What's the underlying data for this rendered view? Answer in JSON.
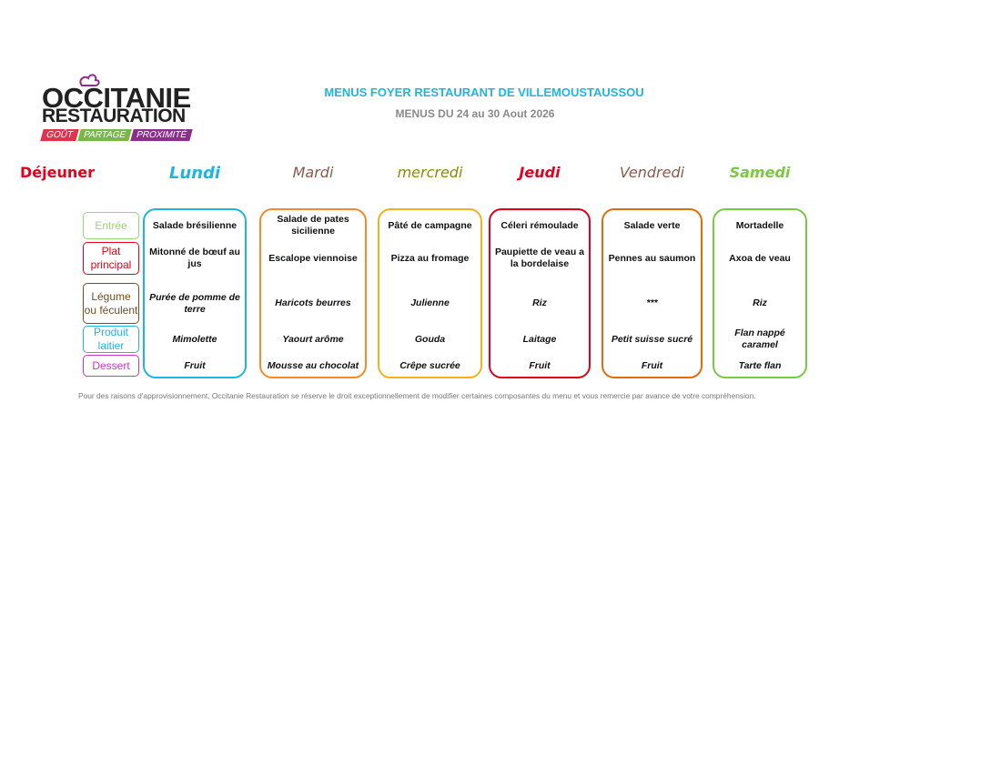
{
  "header": {
    "logo": {
      "line1": "OCCITANIE",
      "line2": "RESTAURATION",
      "tags": [
        "GOÛT",
        "PARTAGE",
        "PROXIMITÉ"
      ]
    },
    "title": "MENUS FOYER RESTAURANT DE VILLEMOUSTAUSSOU",
    "subtitle": "MENUS DU 24 au 30 Aout 2026"
  },
  "menu": {
    "meal_label": "Déjeuner",
    "categories": [
      "Entrée",
      "Plat principal",
      "Légume ou féculent",
      "Produit laitier",
      "Dessert"
    ],
    "days": [
      {
        "name": "Lundi",
        "items": [
          "Salade brésilienne",
          "Mitonné de bœuf au jus",
          "Purée de pomme de terre",
          "Mimolette",
          "Fruit"
        ]
      },
      {
        "name": "Mardi",
        "items": [
          "Salade de pates sicilienne",
          "Escalope viennoise",
          "Haricots beurres",
          "Yaourt arôme",
          "Mousse au chocolat"
        ]
      },
      {
        "name": "mercredi",
        "items": [
          "Pâté de campagne",
          "Pizza au fromage",
          "Julienne",
          "Gouda",
          "Crêpe sucrée"
        ]
      },
      {
        "name": "Jeudi",
        "items": [
          "Céleri rémoulade",
          "Paupiette de veau a la bordelaise",
          "Riz",
          "Laitage",
          "Fruit"
        ]
      },
      {
        "name": "Vendredi",
        "items": [
          "Salade verte",
          "Pennes au saumon",
          "***",
          "Petit suisse sucré",
          "Fruit"
        ]
      },
      {
        "name": "Samedi",
        "items": [
          "Mortadelle",
          "Axoa de  veau",
          "Riz",
          "Flan nappé caramel",
          "Tarte flan"
        ]
      }
    ]
  },
  "footer": {
    "note": "Pour des raisons d'approvisionnement, Occitanie Restauration se réserve le droit exceptionnellement de modifier certaines composantes du menu et vous remercie par avance de votre compréhension."
  }
}
